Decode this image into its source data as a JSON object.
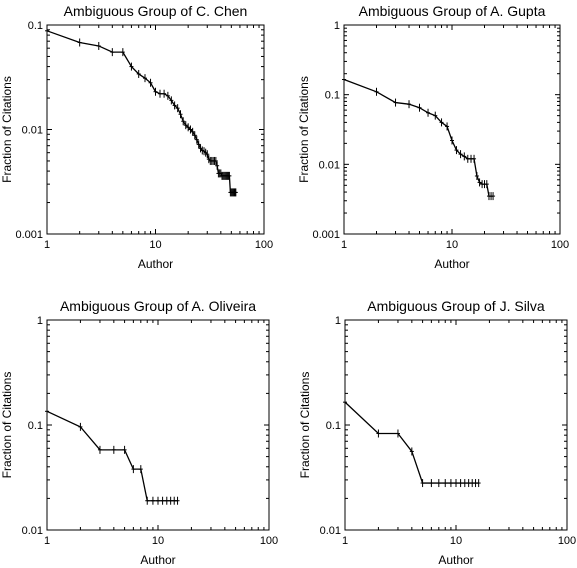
{
  "chart_data": [
    {
      "type": "line",
      "title": "Ambiguous Group of C. Chen",
      "xlabel": "Author",
      "ylabel": "Fraction of Citations",
      "xscale": "log",
      "yscale": "log",
      "xlim": [
        1,
        100
      ],
      "ylim": [
        0.001,
        0.1
      ],
      "xticks": [
        "1",
        "10",
        "100"
      ],
      "yticks": [
        "0.001",
        "0.01",
        "0.1"
      ],
      "marker": "+",
      "x": [
        1,
        2,
        3,
        4,
        5,
        6,
        7,
        8,
        9,
        10,
        11,
        12,
        13,
        14,
        15,
        16,
        17,
        18,
        19,
        20,
        21,
        22,
        23,
        24,
        25,
        26,
        27,
        28,
        29,
        30,
        31,
        32,
        33,
        34,
        35,
        36,
        37,
        38,
        39,
        40,
        41,
        42,
        43,
        44,
        45,
        46,
        47,
        48,
        49,
        50,
        51,
        52,
        53,
        54,
        55
      ],
      "y": [
        0.088,
        0.068,
        0.063,
        0.055,
        0.055,
        0.04,
        0.034,
        0.031,
        0.028,
        0.023,
        0.022,
        0.022,
        0.021,
        0.019,
        0.017,
        0.016,
        0.014,
        0.012,
        0.011,
        0.0105,
        0.01,
        0.0095,
        0.0088,
        0.008,
        0.0072,
        0.0066,
        0.0063,
        0.0062,
        0.006,
        0.0058,
        0.0052,
        0.005,
        0.005,
        0.005,
        0.005,
        0.005,
        0.0045,
        0.0038,
        0.0038,
        0.0038,
        0.0036,
        0.0036,
        0.0036,
        0.0036,
        0.0036,
        0.0036,
        0.0036,
        0.0036,
        0.0025,
        0.0025,
        0.0025,
        0.0025,
        0.0025,
        0.0025,
        0.0025
      ]
    },
    {
      "type": "line",
      "title": "Ambiguous Group of A. Gupta",
      "xlabel": "Author",
      "ylabel": "Fraction of Citations",
      "xscale": "log",
      "yscale": "log",
      "xlim": [
        1,
        100
      ],
      "ylim": [
        0.001,
        1
      ],
      "xticks": [
        "1",
        "10",
        "100"
      ],
      "yticks": [
        "0.001",
        "0.01",
        "0.1",
        "1"
      ],
      "marker": "+",
      "x": [
        1,
        2,
        3,
        4,
        5,
        6,
        7,
        8,
        9,
        10,
        11,
        12,
        13,
        14,
        15,
        16,
        17,
        18,
        19,
        20,
        21,
        22,
        23,
        24
      ],
      "y": [
        0.165,
        0.11,
        0.077,
        0.073,
        0.065,
        0.055,
        0.05,
        0.04,
        0.035,
        0.022,
        0.016,
        0.014,
        0.013,
        0.012,
        0.012,
        0.012,
        0.0068,
        0.0055,
        0.0052,
        0.0052,
        0.0052,
        0.0035,
        0.0035,
        0.0035
      ]
    },
    {
      "type": "line",
      "title": "Ambiguous Group of A. Oliveira",
      "xlabel": "Author",
      "ylabel": "Fraction of Citations",
      "xscale": "log",
      "yscale": "log",
      "xlim": [
        1,
        100
      ],
      "ylim": [
        0.01,
        1
      ],
      "xticks": [
        "1",
        "10",
        "100"
      ],
      "yticks": [
        "0.01",
        "0.1",
        "1"
      ],
      "marker": "+",
      "x": [
        1,
        2,
        3,
        4,
        5,
        6,
        7,
        8,
        9,
        10,
        11,
        12,
        13,
        14,
        15
      ],
      "y": [
        0.135,
        0.096,
        0.058,
        0.058,
        0.058,
        0.038,
        0.038,
        0.019,
        0.019,
        0.019,
        0.019,
        0.019,
        0.019,
        0.019,
        0.019
      ]
    },
    {
      "type": "line",
      "title": "Ambiguous Group of J. Silva",
      "xlabel": "Author",
      "ylabel": "Fraction of Citations",
      "xscale": "log",
      "yscale": "log",
      "xlim": [
        1,
        100
      ],
      "ylim": [
        0.01,
        1
      ],
      "xticks": [
        "1",
        "10",
        "100"
      ],
      "yticks": [
        "0.01",
        "0.1",
        "1"
      ],
      "marker": "+",
      "x": [
        1,
        2,
        3,
        4,
        5,
        6,
        7,
        8,
        9,
        10,
        11,
        12,
        13,
        14,
        15,
        16
      ],
      "y": [
        0.165,
        0.083,
        0.083,
        0.056,
        0.028,
        0.028,
        0.028,
        0.028,
        0.028,
        0.028,
        0.028,
        0.028,
        0.028,
        0.028,
        0.028,
        0.028
      ]
    }
  ]
}
